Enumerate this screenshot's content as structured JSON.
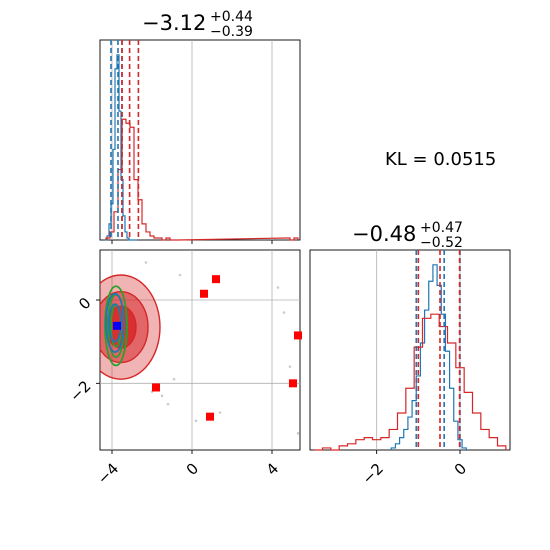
{
  "kl_label": "KL = 0.0515",
  "colors": {
    "model_a": "#1f77b4",
    "model_b": "#d62728",
    "reference": "#2ca02c",
    "marker_truth": "#0000ff",
    "marker_samples": "#ff0000",
    "grid": "#b0b0b0"
  },
  "chart_data": [
    {
      "panel": "marginal-x",
      "type": "histogram",
      "title": {
        "main": "−3.12",
        "sup": "+0.44",
        "sub": "−0.39"
      },
      "xlim": [
        -4.6,
        5.4
      ],
      "grid": true,
      "quantiles": {
        "model_a": [
          -4.05,
          -3.7,
          -3.5
        ],
        "model_b": [
          -3.5,
          -3.12,
          -2.68
        ]
      },
      "series": [
        {
          "color": "model_a",
          "x": [
            -4.3,
            -4.2,
            -4.1,
            -4.0,
            -3.9,
            -3.8,
            -3.7,
            -3.6,
            -3.5,
            -3.4,
            -3.3,
            -3.2,
            -3.1,
            -3.0,
            -2.9,
            -2.8
          ],
          "values": [
            0,
            2,
            8,
            18,
            45,
            85,
            92,
            64,
            30,
            12,
            4,
            1,
            0,
            0,
            0,
            0
          ]
        },
        {
          "color": "model_b",
          "x": [
            -4.2,
            -4.0,
            -3.8,
            -3.6,
            -3.4,
            -3.2,
            -3.0,
            -2.8,
            -2.6,
            -2.4,
            -2.2,
            -2.0,
            -1.8,
            -1.6,
            -1.4,
            -1.2,
            -1.0,
            -0.8,
            4.8,
            5.0,
            5.2
          ],
          "values": [
            1,
            4,
            14,
            35,
            60,
            58,
            56,
            30,
            20,
            8,
            4,
            2,
            1,
            1,
            0,
            1,
            0,
            0,
            1,
            0,
            1
          ]
        }
      ]
    },
    {
      "panel": "marginal-y",
      "type": "histogram",
      "title": {
        "main": "−0.48",
        "sup": "+0.47",
        "sub": "−0.52"
      },
      "xlim": [
        -3.6,
        1.2
      ],
      "xticks": [
        -2,
        0
      ],
      "xtick_labels": [
        "−2",
        "0"
      ],
      "grid": true,
      "quantiles": {
        "model_a": [
          -1.05,
          -0.38,
          0.0
        ],
        "model_b": [
          -1.0,
          -0.48,
          -0.01
        ]
      },
      "series": [
        {
          "color": "model_a",
          "x": [
            -1.6,
            -1.5,
            -1.4,
            -1.3,
            -1.2,
            -1.1,
            -1.0,
            -0.9,
            -0.8,
            -0.7,
            -0.6,
            -0.5,
            -0.4,
            -0.3,
            -0.2,
            -0.1,
            0.0,
            0.1
          ],
          "values": [
            1,
            3,
            6,
            10,
            16,
            24,
            36,
            52,
            68,
            82,
            90,
            80,
            66,
            48,
            30,
            14,
            5,
            1
          ]
        },
        {
          "color": "model_b",
          "x": [
            -3.4,
            -3.2,
            -3.0,
            -2.8,
            -2.6,
            -2.4,
            -2.2,
            -2.0,
            -1.8,
            -1.6,
            -1.4,
            -1.2,
            -1.0,
            -0.8,
            -0.6,
            -0.4,
            -0.2,
            0.0,
            0.2,
            0.4,
            0.6,
            0.8,
            1.0
          ],
          "values": [
            0,
            1,
            0,
            2,
            3,
            5,
            6,
            5,
            6,
            10,
            18,
            30,
            50,
            64,
            66,
            60,
            52,
            40,
            28,
            18,
            10,
            6,
            2
          ]
        }
      ]
    },
    {
      "panel": "joint",
      "type": "scatter",
      "xlim": [
        -4.6,
        5.4
      ],
      "ylim": [
        -3.6,
        1.2
      ],
      "xticks": [
        -4,
        0,
        4
      ],
      "xtick_labels": [
        "−4",
        "0",
        "4"
      ],
      "yticks": [
        -2,
        0
      ],
      "ytick_labels": [
        "−2",
        "0"
      ],
      "grid": true,
      "contours": [
        {
          "color": "model_b",
          "fill": true,
          "center": [
            -3.55,
            -0.65
          ],
          "levels": [
            [
              1.95,
              1.25
            ],
            [
              1.35,
              0.85
            ],
            [
              0.75,
              0.5
            ]
          ]
        },
        {
          "color": "reference",
          "fill": false,
          "center": [
            -3.8,
            -0.62
          ],
          "levels": [
            [
              0.55,
              0.95
            ],
            [
              0.4,
              0.75
            ],
            [
              0.25,
              0.5
            ]
          ]
        },
        {
          "color": "model_a",
          "fill": false,
          "center": [
            -3.85,
            -0.55
          ],
          "levels": [
            [
              0.45,
              0.7
            ],
            [
              0.3,
              0.45
            ]
          ]
        }
      ],
      "markers": {
        "truth": {
          "color": "marker_truth",
          "points": [
            [
              -3.75,
              -0.62
            ]
          ]
        },
        "samples": {
          "color": "marker_samples",
          "points": [
            [
              1.2,
              0.5
            ],
            [
              0.6,
              0.15
            ],
            [
              5.3,
              -0.85
            ],
            [
              5.05,
              -2.0
            ],
            [
              -1.8,
              -2.1
            ],
            [
              0.9,
              -2.8
            ]
          ]
        }
      },
      "scatter_points": [
        [
          -0.6,
          0.6
        ],
        [
          -1.2,
          -2.5
        ],
        [
          -1.5,
          -2.3
        ],
        [
          4.6,
          -0.3
        ],
        [
          4.3,
          0.3
        ],
        [
          1.4,
          -2.7
        ],
        [
          -0.9,
          -1.9
        ],
        [
          -2.3,
          0.9
        ],
        [
          5.3,
          -3.2
        ],
        [
          0.2,
          -2.9
        ],
        [
          -2.0,
          -2.2
        ],
        [
          4.9,
          -1.6
        ]
      ]
    }
  ]
}
